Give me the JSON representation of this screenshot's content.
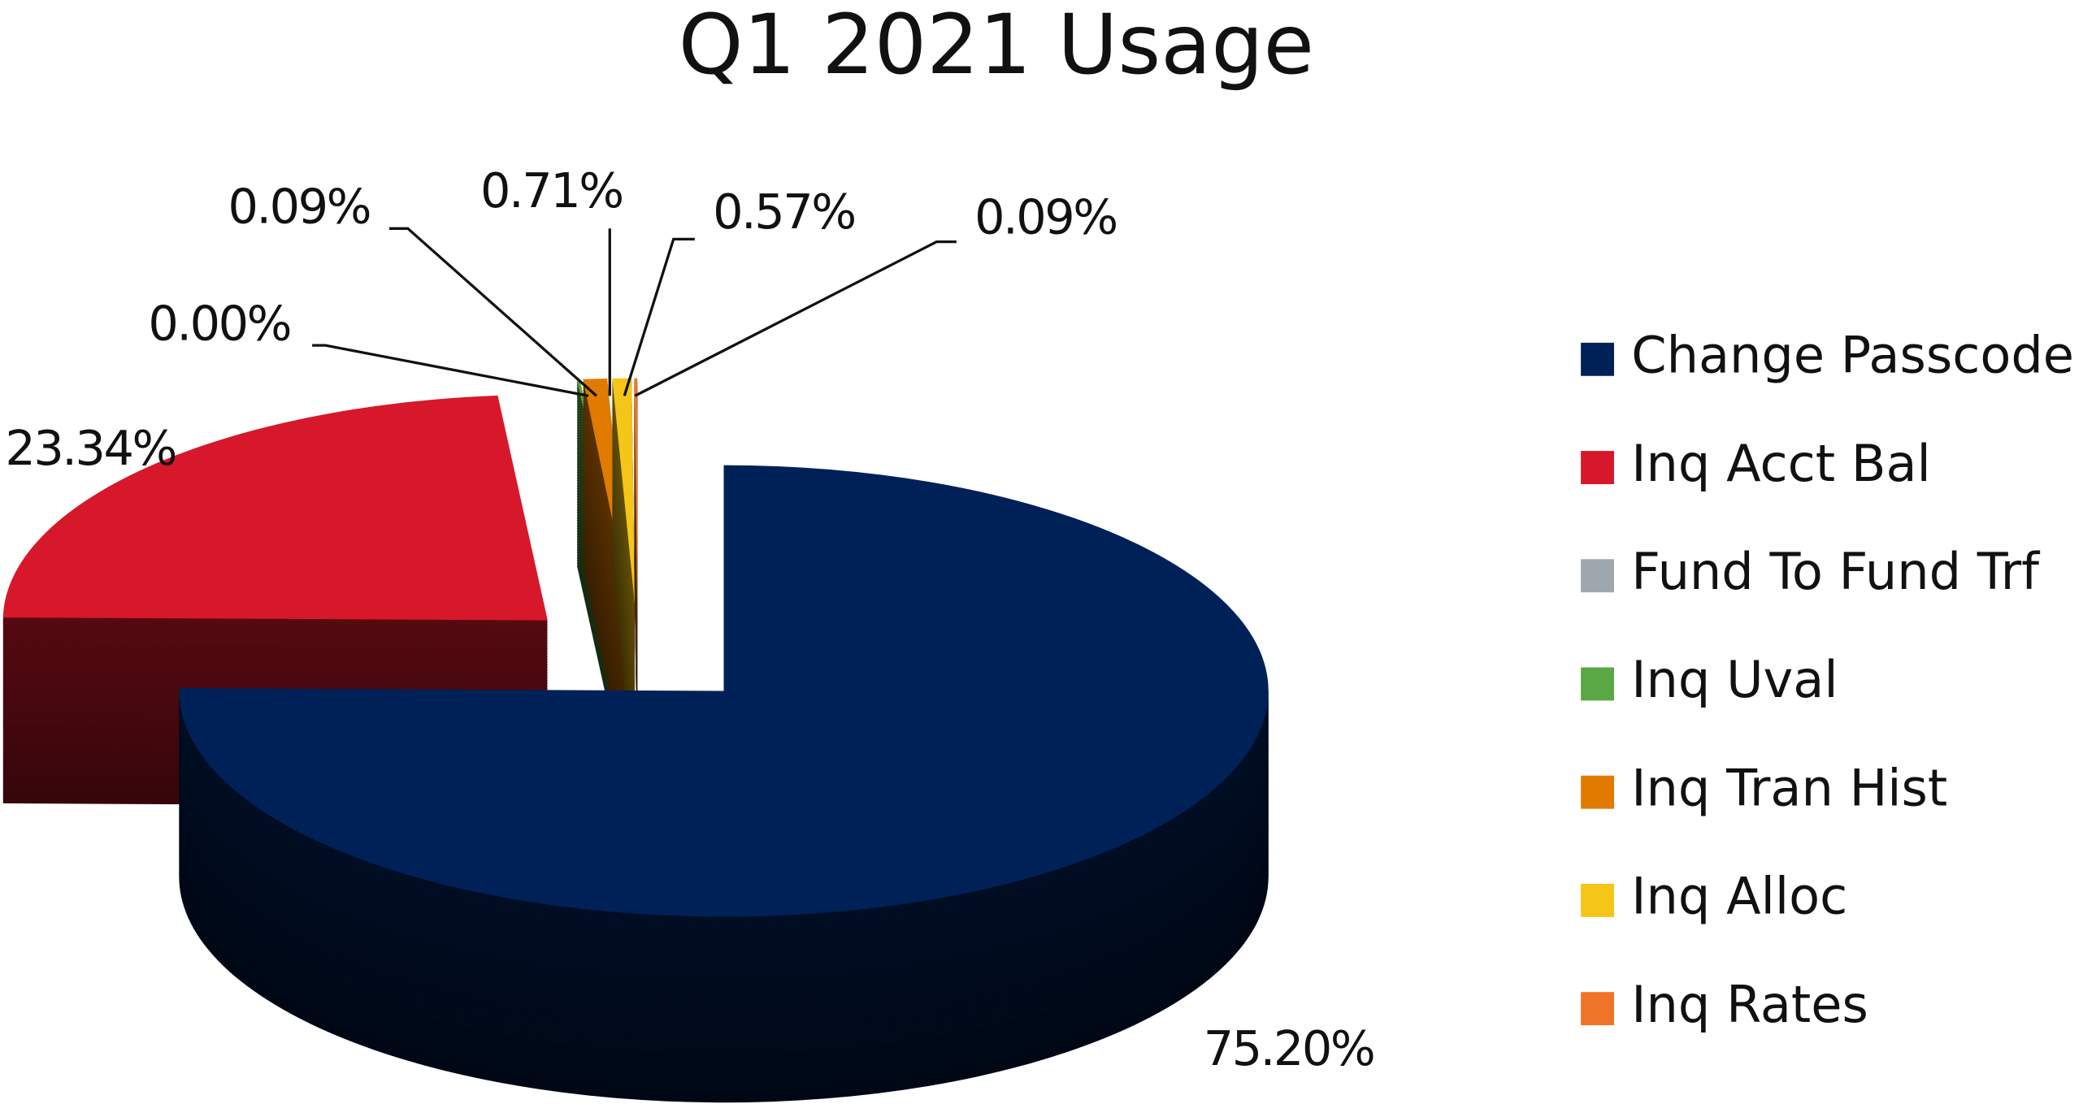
{
  "chart_data": {
    "type": "pie3d",
    "title": "Q1 2021 Usage",
    "categories": [
      "Change Passcode",
      "Inq Acct Bal",
      "Fund To Fund Trf",
      "Inq Uval",
      "Inq Tran Hist",
      "Inq Alloc",
      "Inq Rates"
    ],
    "values": [
      75.2,
      23.34,
      0.0,
      0.09,
      0.71,
      0.57,
      0.09
    ],
    "value_labels": [
      "75.20%",
      "23.34%",
      "0.00%",
      "0.09%",
      "0.71%",
      "0.57%",
      "0.09%"
    ],
    "colors": [
      "#002157",
      "#d7182a",
      "#9ea7ae",
      "#5aa845",
      "#e07b00",
      "#f5c518",
      "#f07427"
    ],
    "legend": "right"
  }
}
